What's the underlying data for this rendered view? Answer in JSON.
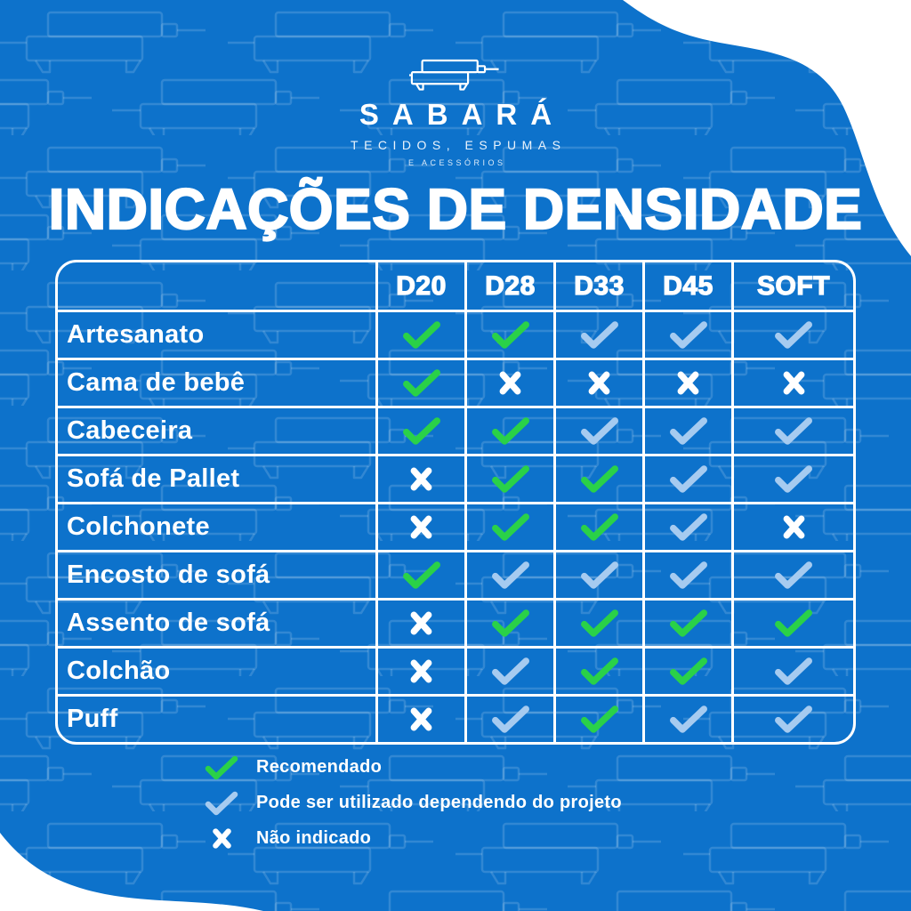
{
  "brand": {
    "name": "SABARÁ",
    "subtitle": "TECIDOS, ESPUMAS",
    "subtitle2": "E ACESSÓRIOS"
  },
  "title": "INDICAÇÕES DE DENSIDADE",
  "table": {
    "columns": [
      "D20",
      "D28",
      "D33",
      "D45",
      "SOFT"
    ],
    "rows": [
      {
        "label": "Artesanato",
        "marks": [
          "recommended",
          "recommended",
          "conditional",
          "conditional",
          "conditional"
        ]
      },
      {
        "label": "Cama de bebê",
        "marks": [
          "recommended",
          "no",
          "no",
          "no",
          "no"
        ]
      },
      {
        "label": "Cabeceira",
        "marks": [
          "recommended",
          "recommended",
          "conditional",
          "conditional",
          "conditional"
        ]
      },
      {
        "label": "Sofá de Pallet",
        "marks": [
          "no",
          "recommended",
          "recommended",
          "conditional",
          "conditional"
        ]
      },
      {
        "label": "Colchonete",
        "marks": [
          "no",
          "recommended",
          "recommended",
          "conditional",
          "no"
        ]
      },
      {
        "label": "Encosto de sofá",
        "marks": [
          "recommended",
          "conditional",
          "conditional",
          "conditional",
          "conditional"
        ]
      },
      {
        "label": "Assento de sofá",
        "marks": [
          "no",
          "recommended",
          "recommended",
          "recommended",
          "recommended"
        ]
      },
      {
        "label": "Colchão",
        "marks": [
          "no",
          "conditional",
          "recommended",
          "recommended",
          "conditional"
        ]
      },
      {
        "label": "Puff",
        "marks": [
          "no",
          "conditional",
          "recommended",
          "conditional",
          "conditional"
        ]
      }
    ]
  },
  "legend": [
    {
      "mark": "recommended",
      "label": "Recomendado"
    },
    {
      "mark": "conditional",
      "label": "Pode ser utilizado dependendo do projeto"
    },
    {
      "mark": "no",
      "label": "Não indicado"
    }
  ],
  "icons": {
    "recommended": "check-icon",
    "conditional": "check-icon",
    "no": "x-icon",
    "brand": "sofa-icon"
  },
  "colors": {
    "background": "#0d72cb",
    "check_recommended": "#2ad148",
    "check_conditional": "#a6cbf0",
    "not_indicated": "#ffffff",
    "grid": "#ffffff",
    "text": "#ffffff"
  }
}
